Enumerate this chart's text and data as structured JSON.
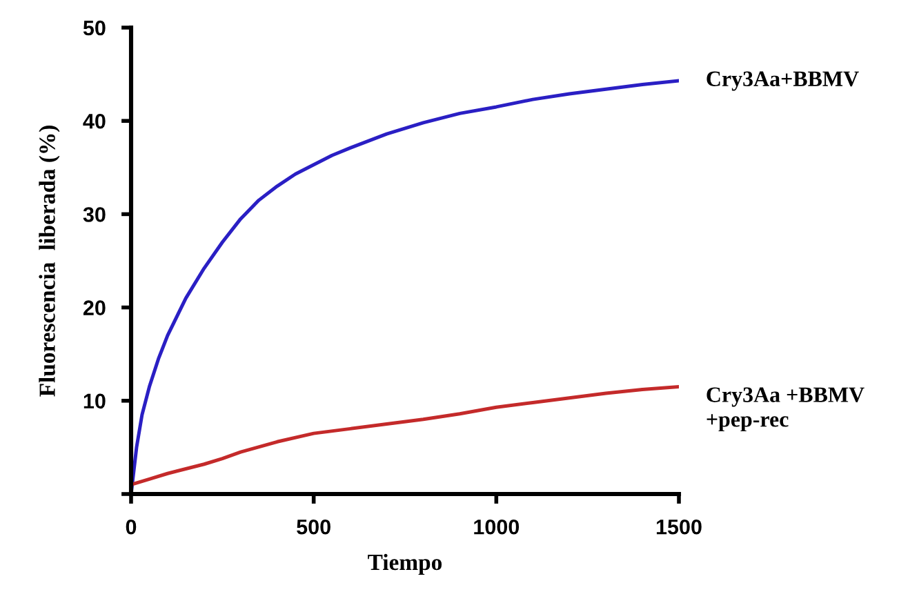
{
  "chart_data": {
    "type": "line",
    "xlabel": "Tiempo",
    "ylabel": "Fluorescencia  liberada (%)",
    "xlim": [
      0,
      1500
    ],
    "ylim": [
      0,
      50
    ],
    "xticks": [
      0,
      500,
      1000,
      1500
    ],
    "yticks": [
      {
        "value": 0,
        "label": null
      },
      10,
      20,
      30,
      40,
      50
    ],
    "grid": false,
    "legend": false,
    "marker": "none",
    "line_style": "solid",
    "series": [
      {
        "name": "Cry3Aa+BBMV",
        "color": "#2a1fc4",
        "x": [
          0,
          15,
          30,
          50,
          75,
          100,
          125,
          150,
          200,
          250,
          300,
          350,
          400,
          450,
          500,
          550,
          600,
          700,
          800,
          900,
          1000,
          1100,
          1200,
          1300,
          1400,
          1500
        ],
        "values": [
          0,
          5,
          8.5,
          11.5,
          14.5,
          17,
          19,
          21,
          24.2,
          27,
          29.5,
          31.5,
          33,
          34.3,
          35.3,
          36.3,
          37.1,
          38.6,
          39.8,
          40.8,
          41.5,
          42.3,
          42.9,
          43.4,
          43.9,
          44.3
        ]
      },
      {
        "name": "Cry3Aa +BBMV\n+pep-rec",
        "color": "#c42a2a",
        "x": [
          0,
          50,
          100,
          200,
          250,
          300,
          400,
          500,
          600,
          700,
          800,
          900,
          1000,
          1100,
          1200,
          1300,
          1400,
          1500
        ],
        "values": [
          1,
          1.6,
          2.2,
          3.2,
          3.8,
          4.5,
          5.6,
          6.5,
          7,
          7.5,
          8,
          8.6,
          9.3,
          9.8,
          10.3,
          10.8,
          11.2,
          11.5
        ]
      }
    ]
  }
}
